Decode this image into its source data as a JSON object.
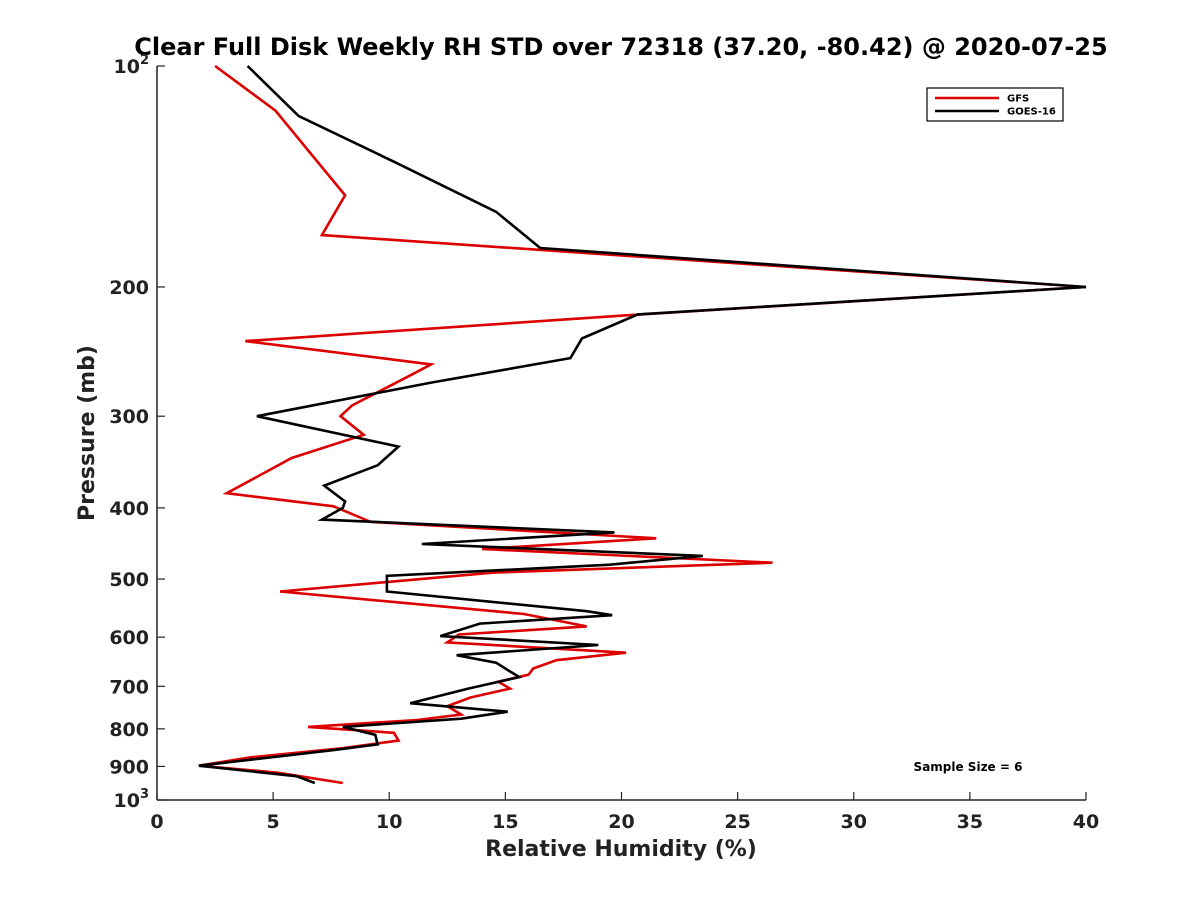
{
  "chart_data": {
    "type": "line",
    "title": "Clear Full Disk Weekly RH STD over 72318 (37.20, -80.42) @ 2020-07-25",
    "xlabel": "Relative Humidity (%)",
    "ylabel": "Pressure (mb)",
    "xlim": [
      0,
      40
    ],
    "ylim": [
      1000,
      100
    ],
    "y_scale": "log",
    "y_reversed": true,
    "grid": false,
    "legend_position": "top-right",
    "x_ticks": [
      0,
      5,
      10,
      15,
      20,
      25,
      30,
      35,
      40
    ],
    "x_tick_labels": [
      "0",
      "5",
      "10",
      "15",
      "20",
      "25",
      "30",
      "35",
      "40"
    ],
    "y_ticks": [
      100,
      200,
      300,
      400,
      500,
      600,
      700,
      800,
      900,
      1000
    ],
    "y_tick_labels": [
      {
        "base": "10",
        "exp": "2"
      },
      {
        "base": "200",
        "exp": ""
      },
      {
        "base": "300",
        "exp": ""
      },
      {
        "base": "400",
        "exp": ""
      },
      {
        "base": "500",
        "exp": ""
      },
      {
        "base": "600",
        "exp": ""
      },
      {
        "base": "700",
        "exp": ""
      },
      {
        "base": "800",
        "exp": ""
      },
      {
        "base": "900",
        "exp": ""
      },
      {
        "base": "10",
        "exp": "3"
      }
    ],
    "annotation": "Sample Size = 6",
    "series": [
      {
        "name": "GFS",
        "color": "#dd0000",
        "points": [
          [
            2.5,
            100
          ],
          [
            5.1,
            115
          ],
          [
            8.1,
            150
          ],
          [
            7.1,
            170
          ],
          [
            40.0,
            200
          ],
          [
            20.8,
            218
          ],
          [
            3.8,
            237
          ],
          [
            11.8,
            255
          ],
          [
            10.8,
            265
          ],
          [
            8.4,
            290
          ],
          [
            7.9,
            300
          ],
          [
            8.9,
            318
          ],
          [
            5.8,
            342
          ],
          [
            3.0,
            382
          ],
          [
            7.6,
            398
          ],
          [
            9.2,
            418
          ],
          [
            21.5,
            440
          ],
          [
            14.0,
            455
          ],
          [
            26.5,
            475
          ],
          [
            14.5,
            490
          ],
          [
            5.3,
            520
          ],
          [
            15.8,
            558
          ],
          [
            18.5,
            580
          ],
          [
            13.0,
            595
          ],
          [
            12.5,
            610
          ],
          [
            20.2,
            630
          ],
          [
            17.2,
            645
          ],
          [
            16.2,
            662
          ],
          [
            16.0,
            675
          ],
          [
            14.7,
            690
          ],
          [
            15.2,
            705
          ],
          [
            13.5,
            725
          ],
          [
            12.5,
            745
          ],
          [
            13.1,
            765
          ],
          [
            11.2,
            778
          ],
          [
            6.5,
            795
          ],
          [
            10.2,
            810
          ],
          [
            10.4,
            830
          ],
          [
            8.0,
            850
          ],
          [
            4.0,
            875
          ],
          [
            1.8,
            898
          ],
          [
            5.2,
            918
          ],
          [
            8.0,
            948
          ]
        ]
      },
      {
        "name": "GOES-16",
        "color": "#000000",
        "points": [
          [
            3.9,
            100
          ],
          [
            6.1,
            117
          ],
          [
            10.2,
            135
          ],
          [
            14.6,
            158
          ],
          [
            16.5,
            177
          ],
          [
            40.0,
            200
          ],
          [
            20.7,
            218
          ],
          [
            18.3,
            235
          ],
          [
            17.8,
            250
          ],
          [
            11.8,
            270
          ],
          [
            4.3,
            300
          ],
          [
            10.4,
            330
          ],
          [
            9.5,
            350
          ],
          [
            7.2,
            373
          ],
          [
            8.1,
            392
          ],
          [
            8.0,
            400
          ],
          [
            7.1,
            415
          ],
          [
            19.7,
            432
          ],
          [
            11.4,
            448
          ],
          [
            23.5,
            465
          ],
          [
            19.5,
            478
          ],
          [
            9.9,
            495
          ],
          [
            9.9,
            520
          ],
          [
            18.5,
            553
          ],
          [
            19.6,
            560
          ],
          [
            13.9,
            575
          ],
          [
            12.2,
            598
          ],
          [
            19.0,
            615
          ],
          [
            12.9,
            635
          ],
          [
            14.6,
            650
          ],
          [
            15.1,
            665
          ],
          [
            15.6,
            680
          ],
          [
            13.4,
            705
          ],
          [
            10.9,
            738
          ],
          [
            15.1,
            758
          ],
          [
            13.1,
            775
          ],
          [
            8.0,
            795
          ],
          [
            9.4,
            815
          ],
          [
            9.5,
            840
          ],
          [
            7.6,
            855
          ],
          [
            1.8,
            898
          ],
          [
            6.0,
            928
          ],
          [
            6.8,
            948
          ]
        ]
      }
    ]
  }
}
